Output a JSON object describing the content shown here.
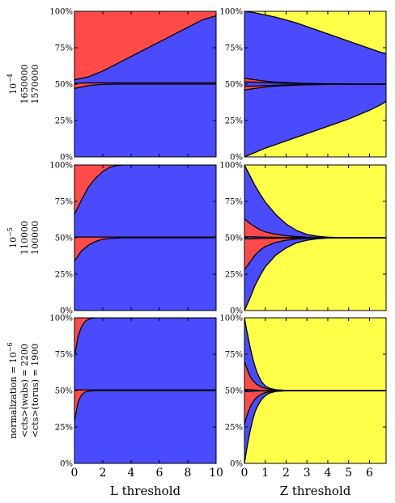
{
  "colors": {
    "blue": "#4a4aff",
    "red": "#ff4a4a",
    "yellow": "#ffff4a",
    "outline": "#000000"
  },
  "y_ticks": [
    "0%",
    "25%",
    "50%",
    "75%",
    "100%"
  ],
  "columns": [
    {
      "xlabel": "L threshold",
      "xlim": [
        0,
        10
      ],
      "ticks": [
        0,
        2,
        4,
        6,
        8,
        10
      ],
      "tick_labels": [
        "0",
        "2",
        "4",
        "6",
        "8",
        "10"
      ]
    },
    {
      "xlabel": "Z threshold",
      "xlim": [
        0,
        6.8
      ],
      "ticks": [
        0,
        1,
        2,
        3,
        4,
        5,
        6
      ],
      "tick_labels": [
        "0",
        "1",
        "2",
        "3",
        "4",
        "5",
        "6"
      ]
    }
  ],
  "rows": [
    {
      "label_lines": [
        "10^-4",
        "1650000",
        "1570000"
      ],
      "label_prefix": [
        "",
        "",
        ""
      ],
      "label_exp": "−4"
    },
    {
      "label_lines": [
        "10^-5",
        "110000",
        "100000"
      ],
      "label_prefix": [
        "",
        "",
        ""
      ],
      "label_exp": "−5"
    },
    {
      "label_lines": [
        "normalization = 10^-6",
        "<cts>(wabs) = 2200",
        "<cts>(torus) = 1900"
      ],
      "label_exp": "−6"
    }
  ],
  "row_labels_text": [
    {
      "exp_prefix": "",
      "line1": "1650000",
      "line2": "1570000",
      "exp": "−4"
    },
    {
      "exp_prefix": "",
      "line1": "110000",
      "line2": "100000",
      "exp": "−5"
    },
    {
      "exp_prefix": "normalization = ",
      "line1": "<cts>(wabs) = 2200",
      "line2": "<cts>(torus) = 1900",
      "exp": "−6"
    }
  ],
  "chart_data": [
    {
      "type": "area",
      "row": 0,
      "col": 0,
      "xlim": [
        0,
        10
      ],
      "ylim": [
        0,
        100
      ],
      "x": [
        0,
        0.5,
        1,
        1.5,
        2,
        3,
        4,
        5,
        6,
        7,
        8,
        9,
        10
      ],
      "boundaries": [
        [
          47,
          48,
          49,
          49.5,
          49.8,
          50,
          50,
          50,
          50,
          50,
          50,
          50,
          50
        ],
        [
          50.5,
          50.7,
          50.8,
          50.8,
          50.8,
          50.8,
          50.8,
          50.8,
          50.8,
          50.8,
          50.8,
          50.8,
          50.8
        ],
        [
          53,
          54,
          55,
          57,
          59,
          64,
          69,
          74,
          79,
          84,
          89,
          94,
          97
        ]
      ],
      "fills": [
        "blue",
        "red",
        "blue",
        "red",
        "blue"
      ]
    },
    {
      "type": "area",
      "row": 0,
      "col": 1,
      "xlim": [
        0,
        6.8
      ],
      "ylim": [
        0,
        100
      ],
      "x": [
        0,
        0.5,
        1,
        1.5,
        2,
        2.5,
        3,
        3.5,
        4,
        4.5,
        5,
        5.5,
        6,
        6.5,
        6.8
      ],
      "boundaries": [
        [
          0,
          3,
          6,
          8.5,
          11,
          13.5,
          16,
          18.5,
          21,
          23.5,
          26,
          29,
          32,
          35.5,
          38
        ],
        [
          46,
          47,
          48,
          48.6,
          49,
          49.3,
          49.5,
          49.7,
          49.8,
          49.9,
          50,
          50,
          50,
          50,
          50
        ],
        [
          48.5,
          48.7,
          49,
          49.2,
          49.4,
          49.6,
          49.7,
          49.8,
          49.9,
          50,
          50,
          50,
          50,
          50,
          50
        ],
        [
          51.5,
          51.3,
          51,
          50.8,
          50.6,
          50.4,
          50.3,
          50.2,
          50.1,
          50,
          50,
          50,
          50,
          50,
          50
        ],
        [
          54,
          53,
          52,
          51.4,
          51,
          50.7,
          50.5,
          50.3,
          50.2,
          50.1,
          50,
          50,
          50,
          50,
          50
        ],
        [
          100,
          99,
          97.5,
          96,
          94,
          92,
          89.5,
          87,
          84.5,
          82,
          79.5,
          77,
          74.5,
          72,
          71
        ]
      ],
      "fills": [
        "yellow",
        "blue",
        "red",
        "blue",
        "red",
        "blue",
        "yellow"
      ]
    },
    {
      "type": "area",
      "row": 1,
      "col": 0,
      "xlim": [
        0,
        10
      ],
      "ylim": [
        0,
        100
      ],
      "x": [
        0,
        0.5,
        1,
        1.5,
        2,
        2.5,
        3,
        3.5,
        4,
        5,
        6,
        8,
        10
      ],
      "boundaries": [
        [
          34,
          41,
          45,
          47.5,
          49,
          49.5,
          49.8,
          50,
          50,
          50,
          50,
          50,
          50
        ],
        [
          50.5,
          50.5,
          50.5,
          50.5,
          50.5,
          50.5,
          50.5,
          50.5,
          50.5,
          50.5,
          50.5,
          50.5,
          50.5
        ],
        [
          66,
          76,
          85,
          91,
          95.5,
          98.5,
          99.7,
          100,
          100,
          100,
          100,
          100,
          100
        ]
      ],
      "fills": [
        "blue",
        "red",
        "blue",
        "red",
        "blue"
      ]
    },
    {
      "type": "area",
      "row": 1,
      "col": 1,
      "xlim": [
        0,
        6.8
      ],
      "ylim": [
        0,
        100
      ],
      "x": [
        0,
        0.25,
        0.5,
        0.75,
        1,
        1.5,
        2,
        2.5,
        3,
        3.5,
        4,
        4.5,
        5,
        6,
        6.8
      ],
      "boundaries": [
        [
          0,
          8,
          17,
          24,
          30,
          38,
          43,
          46.5,
          48.3,
          49.3,
          49.8,
          50,
          50,
          50,
          50
        ],
        [
          28,
          33,
          38,
          41.5,
          44,
          46.8,
          48.3,
          49.2,
          49.6,
          49.8,
          49.9,
          50,
          50,
          50,
          50
        ],
        [
          49.3,
          49.3,
          49.4,
          49.5,
          49.6,
          49.7,
          49.8,
          49.9,
          50,
          50,
          50,
          50,
          50,
          50,
          50
        ],
        [
          50.7,
          50.7,
          50.6,
          50.5,
          50.4,
          50.3,
          50.2,
          50.1,
          50,
          50,
          50,
          50,
          50,
          50,
          50
        ],
        [
          63,
          60,
          57.5,
          55.5,
          54,
          52.4,
          51.4,
          50.8,
          50.4,
          50.2,
          50.1,
          50,
          50,
          50,
          50
        ],
        [
          100,
          93,
          86,
          80,
          74.5,
          66,
          59.5,
          55,
          52.3,
          51,
          50.4,
          50.1,
          50,
          50,
          50
        ]
      ],
      "fills": [
        "yellow",
        "blue",
        "red",
        "blue",
        "red",
        "blue",
        "yellow"
      ]
    },
    {
      "type": "area",
      "row": 2,
      "col": 0,
      "xlim": [
        0,
        10
      ],
      "ylim": [
        0,
        100
      ],
      "x": [
        0,
        0.25,
        0.5,
        0.75,
        1,
        1.25,
        1.5,
        2,
        3,
        4,
        6,
        8,
        10
      ],
      "boundaries": [
        [
          29,
          42,
          47,
          49,
          49.6,
          49.9,
          50,
          50,
          50,
          50,
          50,
          50,
          50
        ],
        [
          50.5,
          50.5,
          50.5,
          50.5,
          50.5,
          50.5,
          50.5,
          50.5,
          50.5,
          50.5,
          50.5,
          50.5,
          50.5
        ],
        [
          73,
          87,
          94,
          97.5,
          99,
          99.7,
          100,
          100,
          100,
          100,
          100,
          100,
          100
        ]
      ],
      "fills": [
        "blue",
        "red",
        "blue",
        "red",
        "blue"
      ]
    },
    {
      "type": "area",
      "row": 2,
      "col": 1,
      "xlim": [
        0,
        6.8
      ],
      "ylim": [
        0,
        100
      ],
      "x": [
        0,
        0.1,
        0.2,
        0.3,
        0.4,
        0.5,
        0.6,
        0.8,
        1,
        1.2,
        1.5,
        2,
        2.5,
        3,
        4,
        6.8
      ],
      "boundaries": [
        [
          0,
          9,
          17,
          24,
          30,
          35,
          38.5,
          43.5,
          46.5,
          48.3,
          49.4,
          49.9,
          50,
          50,
          50,
          50
        ],
        [
          27,
          32,
          36,
          39.5,
          42,
          44,
          45.5,
          47.5,
          48.6,
          49.2,
          49.7,
          49.95,
          50,
          50,
          50,
          50
        ],
        [
          49.3,
          49.3,
          49.4,
          49.4,
          49.5,
          49.6,
          49.7,
          49.8,
          49.9,
          49.95,
          50,
          50,
          50,
          50,
          50,
          50
        ],
        [
          50.7,
          50.7,
          50.6,
          50.6,
          50.5,
          50.4,
          50.3,
          50.2,
          50.1,
          50.05,
          50,
          50,
          50,
          50,
          50,
          50
        ],
        [
          70,
          66,
          62,
          59,
          57,
          55.5,
          54.2,
          52.5,
          51.5,
          50.9,
          50.4,
          50.1,
          50,
          50,
          50,
          50
        ],
        [
          100,
          92,
          85,
          78,
          72,
          67,
          62.5,
          56.5,
          53.2,
          51.6,
          50.6,
          50.1,
          50,
          50,
          50,
          50
        ]
      ],
      "fills": [
        "yellow",
        "blue",
        "red",
        "blue",
        "red",
        "blue",
        "yellow"
      ]
    }
  ]
}
